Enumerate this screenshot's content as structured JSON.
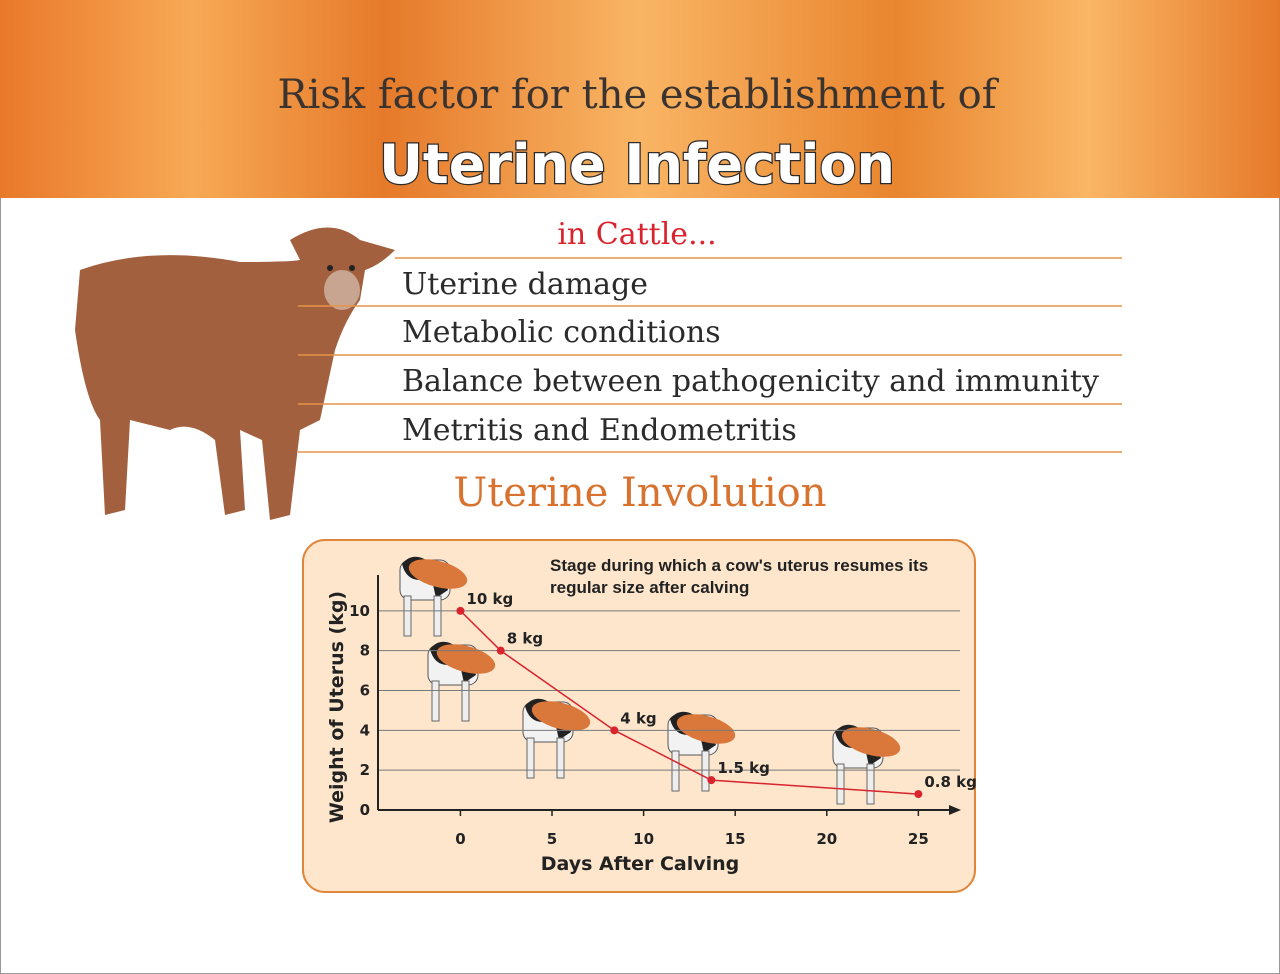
{
  "header": {
    "title": "Risk factor for the establishment of",
    "subtitle": "Uterine Infection"
  },
  "cattle_label": "in Cattle...",
  "risk_factors": [
    "Uterine damage",
    "Metabolic conditions",
    "Balance between pathogenicity and immunity",
    "Metritis and Endometritis"
  ],
  "section_title": "Uterine Involution",
  "chart_data": {
    "type": "line",
    "annotation": "Stage during which a cow's uterus resumes its regular size after calving",
    "xlabel": "Days After Calving",
    "ylabel": "Weight of Uterus (kg)",
    "x": [
      0,
      2.2,
      8.4,
      13.7,
      25
    ],
    "values": [
      10,
      8,
      4,
      1.5,
      0.8
    ],
    "value_labels": [
      "10 kg",
      "8 kg",
      "4 kg",
      "1.5 kg",
      "0.8 kg"
    ],
    "color": "#d9232d",
    "xlim": [
      -4.5,
      27
    ],
    "ylim": [
      0,
      11.8
    ],
    "xticks": [
      0,
      5,
      10,
      15,
      20,
      25
    ],
    "yticks": [
      0,
      2,
      4,
      6,
      8,
      10
    ],
    "grid": true
  }
}
